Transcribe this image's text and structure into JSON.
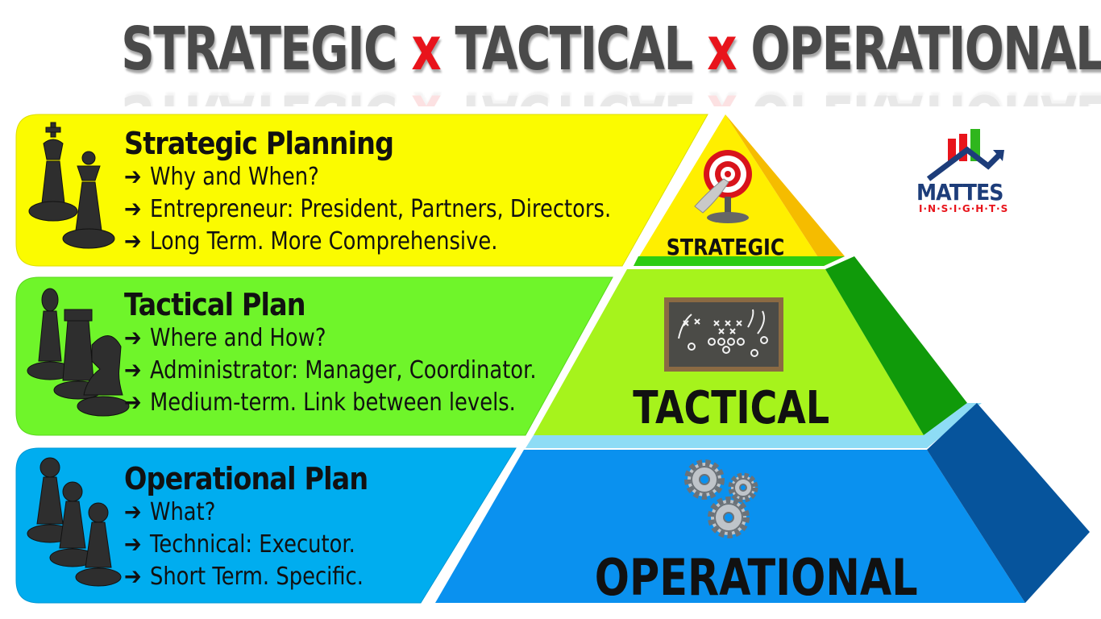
{
  "title": {
    "part1": "STRATEGIC",
    "sep1": "x",
    "part2": "TACTICAL",
    "sep2": "x",
    "part3": "OPERATIONAL"
  },
  "bands": [
    {
      "title": "Strategic Planning",
      "bullets": [
        "Why and When?",
        "Entrepreneur: President, Partners, Directors.",
        "Long Term. More Comprehensive."
      ],
      "color": "#fbfb00"
    },
    {
      "title": "Tactical Plan",
      "bullets": [
        "Where and How?",
        "Administrator: Manager, Coordinator.",
        "Medium-term. Link  between levels."
      ],
      "color": "#6ff52a"
    },
    {
      "title": "Operational Plan",
      "bullets": [
        "What?",
        "Technical: Executor.",
        "Short Term. Specific."
      ],
      "color": "#00adef"
    }
  ],
  "arrow_glyph": "➔",
  "pyramid": {
    "top": "STRATEGIC",
    "middle": "TACTICAL",
    "bottom": "OPERATIONAL"
  },
  "logo": {
    "name": "MATTES",
    "sub": "I·N·S·I·G·H·T·S"
  },
  "colors": {
    "title_gray": "#4a4a4a",
    "accent_red": "#e8141b",
    "yellow": "#fbfb00",
    "green": "#6ff52a",
    "blue": "#00adef"
  }
}
